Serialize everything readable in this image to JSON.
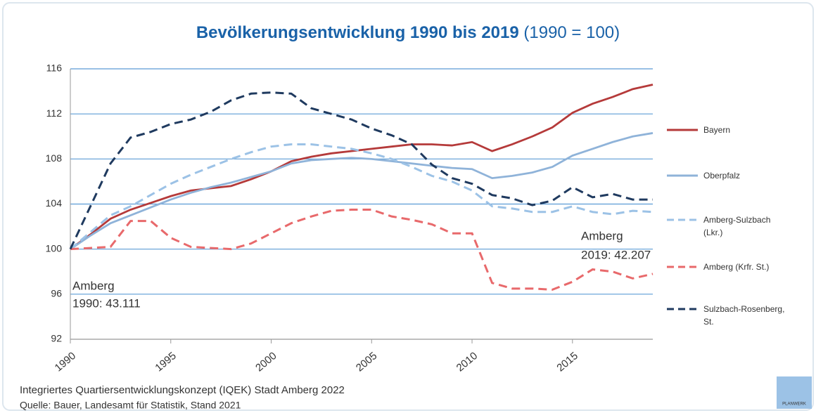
{
  "chart_data": {
    "type": "line",
    "title": "Bevölkerungsentwicklung 1990 bis 2019",
    "title_suffix": "(1990 = 100)",
    "x": [
      1990,
      1991,
      1992,
      1993,
      1994,
      1995,
      1996,
      1997,
      1998,
      1999,
      2000,
      2001,
      2002,
      2003,
      2004,
      2005,
      2006,
      2007,
      2008,
      2009,
      2010,
      2011,
      2012,
      2013,
      2014,
      2015,
      2016,
      2017,
      2018,
      2019
    ],
    "xlim": [
      1990,
      2019
    ],
    "xticks": [
      1990,
      1995,
      2000,
      2005,
      2010,
      2015
    ],
    "ylim": [
      92,
      116
    ],
    "yticks": [
      92,
      96,
      100,
      104,
      108,
      112,
      116
    ],
    "grid": true,
    "legend": "right",
    "series": [
      {
        "name": "Bayern",
        "color": "#b53a3a",
        "dash": false,
        "values": [
          100,
          101.3,
          102.7,
          103.5,
          104.1,
          104.7,
          105.2,
          105.4,
          105.6,
          106.2,
          106.9,
          107.8,
          108.2,
          108.5,
          108.7,
          108.9,
          109.1,
          109.3,
          109.3,
          109.2,
          109.5,
          108.7,
          109.3,
          110.0,
          110.8,
          112.1,
          112.9,
          113.5,
          114.2,
          114.6
        ]
      },
      {
        "name": "Oberpfalz",
        "color": "#8fb3d9",
        "dash": false,
        "values": [
          100,
          101.2,
          102.3,
          103.0,
          103.7,
          104.4,
          105.0,
          105.5,
          105.9,
          106.4,
          106.9,
          107.6,
          107.9,
          108.0,
          108.1,
          108.0,
          107.8,
          107.6,
          107.4,
          107.2,
          107.1,
          106.3,
          106.5,
          106.8,
          107.3,
          108.3,
          108.9,
          109.5,
          110.0,
          110.3
        ]
      },
      {
        "name": "Amberg-Sulzbach (Lkr.)",
        "color": "#9cc2e6",
        "dash": true,
        "values": [
          100,
          101.5,
          103.0,
          103.8,
          104.8,
          105.8,
          106.6,
          107.3,
          108.0,
          108.6,
          109.1,
          109.3,
          109.3,
          109.1,
          108.9,
          108.5,
          108.0,
          107.3,
          106.5,
          106.0,
          105.2,
          103.8,
          103.6,
          103.3,
          103.3,
          103.8,
          103.3,
          103.1,
          103.4,
          103.3
        ]
      },
      {
        "name": "Amberg (Krfr. St.)",
        "color": "#e8696b",
        "dash": true,
        "values": [
          100,
          100.1,
          100.2,
          102.5,
          102.5,
          101.0,
          100.2,
          100.1,
          100.0,
          100.5,
          101.4,
          102.3,
          102.9,
          103.4,
          103.5,
          103.5,
          102.9,
          102.6,
          102.2,
          101.4,
          101.4,
          97.0,
          96.5,
          96.5,
          96.4,
          97.1,
          98.2,
          98.0,
          97.4,
          97.8
        ]
      },
      {
        "name": "Sulzbach-Rosenberg, St.",
        "color": "#1f3a5f",
        "dash": true,
        "values": [
          100,
          103.8,
          107.6,
          109.9,
          110.4,
          111.1,
          111.5,
          112.2,
          113.2,
          113.8,
          113.9,
          113.8,
          112.5,
          112.0,
          111.5,
          110.7,
          110.1,
          109.3,
          107.5,
          106.3,
          105.8,
          104.8,
          104.5,
          103.9,
          104.3,
          105.5,
          104.6,
          104.9,
          104.4,
          104.4
        ]
      }
    ],
    "annotations": [
      "Amberg",
      "1990: 43.111",
      "Amberg",
      "2019: 42.207"
    ],
    "footer": "Integriertes Quartiersentwicklungskonzept (IQEK) Stadt Amberg 2022",
    "source": "Quelle: Bauer, Landesamt für Statistik, Stand 2021",
    "logo": "PLANWERK"
  }
}
